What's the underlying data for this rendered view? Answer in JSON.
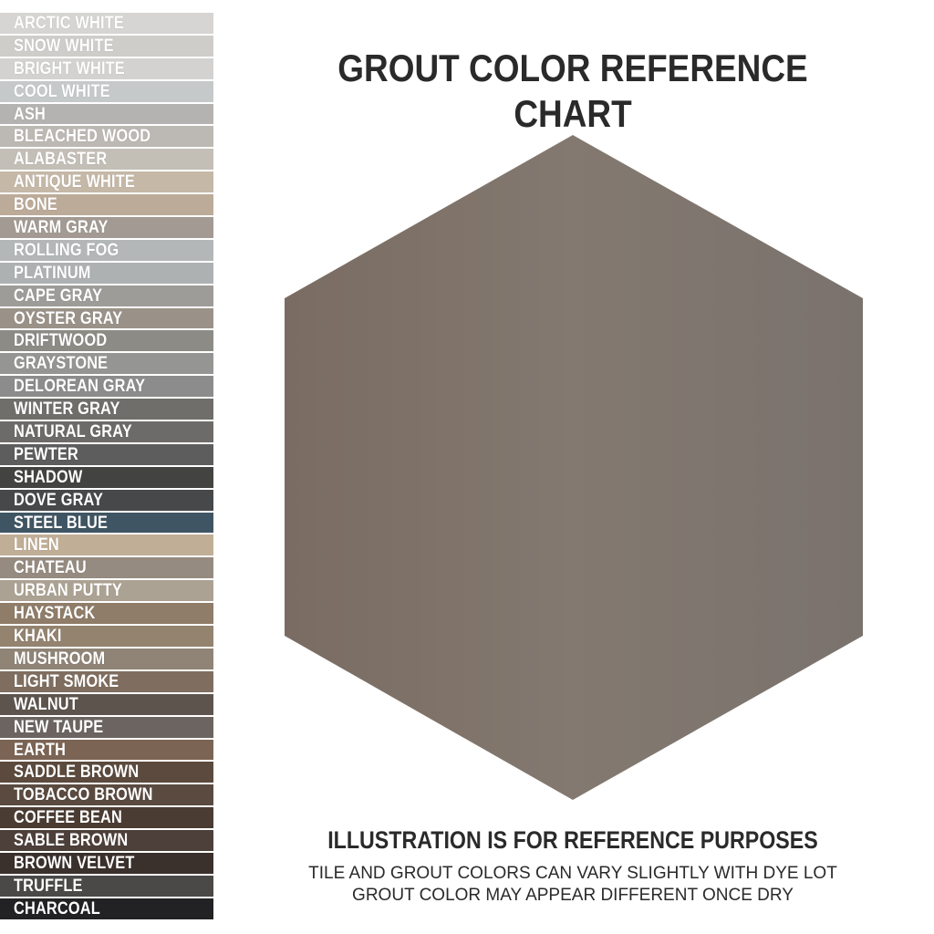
{
  "title": "GROUT COLOR REFERENCE CHART",
  "tile_color": "#7e736b",
  "swatches": [
    {
      "label": "ARCTIC WHITE",
      "color": "#d6d5d3"
    },
    {
      "label": "SNOW WHITE",
      "color": "#cfcdca"
    },
    {
      "label": "BRIGHT WHITE",
      "color": "#d3d2d0"
    },
    {
      "label": "COOL WHITE",
      "color": "#c6c9ca"
    },
    {
      "label": "ASH",
      "color": "#b4b3b1"
    },
    {
      "label": "BLEACHED WOOD",
      "color": "#bcb8b3"
    },
    {
      "label": "ALABASTER",
      "color": "#c3bfb7"
    },
    {
      "label": "ANTIQUE WHITE",
      "color": "#c5b8a7"
    },
    {
      "label": "BONE",
      "color": "#bcab98"
    },
    {
      "label": "WARM GRAY",
      "color": "#a29a93"
    },
    {
      "label": "ROLLING FOG",
      "color": "#b3b7b8"
    },
    {
      "label": "PLATINUM",
      "color": "#aeb1b2"
    },
    {
      "label": "CAPE GRAY",
      "color": "#9d9c98"
    },
    {
      "label": "OYSTER GRAY",
      "color": "#9a9288"
    },
    {
      "label": "DRIFTWOOD",
      "color": "#8d8b86"
    },
    {
      "label": "GRAYSTONE",
      "color": "#959593"
    },
    {
      "label": "DELOREAN GRAY",
      "color": "#8b8c8b"
    },
    {
      "label": "WINTER GRAY",
      "color": "#6f6e6b"
    },
    {
      "label": "NATURAL GRAY",
      "color": "#6c6b69"
    },
    {
      "label": "PEWTER",
      "color": "#5d5d5e"
    },
    {
      "label": "SHADOW",
      "color": "#434341"
    },
    {
      "label": "DOVE GRAY",
      "color": "#46484a"
    },
    {
      "label": "STEEL BLUE",
      "color": "#405563"
    },
    {
      "label": "LINEN",
      "color": "#c1ae96"
    },
    {
      "label": "CHATEAU",
      "color": "#958b80"
    },
    {
      "label": "URBAN PUTTY",
      "color": "#aca293"
    },
    {
      "label": "HAYSTACK",
      "color": "#8f7c69"
    },
    {
      "label": "KHAKI",
      "color": "#93836f"
    },
    {
      "label": "MUSHROOM",
      "color": "#8f8476"
    },
    {
      "label": "LIGHT SMOKE",
      "color": "#7f6e5f"
    },
    {
      "label": "WALNUT",
      "color": "#5d554d"
    },
    {
      "label": "NEW TAUPE",
      "color": "#6b6460"
    },
    {
      "label": "EARTH",
      "color": "#7b6454"
    },
    {
      "label": "SADDLE BROWN",
      "color": "#5b4a3d"
    },
    {
      "label": "TOBACCO BROWN",
      "color": "#5a4a40"
    },
    {
      "label": "COFFEE BEAN",
      "color": "#4b3c33"
    },
    {
      "label": "SABLE BROWN",
      "color": "#4d3f3a"
    },
    {
      "label": "BROWN VELVET",
      "color": "#3a302c"
    },
    {
      "label": "TRUFFLE",
      "color": "#4a4947"
    },
    {
      "label": "CHARCOAL",
      "color": "#222224"
    }
  ],
  "notes": {
    "heading": "ILLUSTRATION IS FOR REFERENCE PURPOSES",
    "line1": "TILE AND GROUT COLORS CAN VARY SLIGHTLY WITH DYE LOT",
    "line2": "GROUT COLOR MAY APPEAR DIFFERENT ONCE DRY"
  }
}
